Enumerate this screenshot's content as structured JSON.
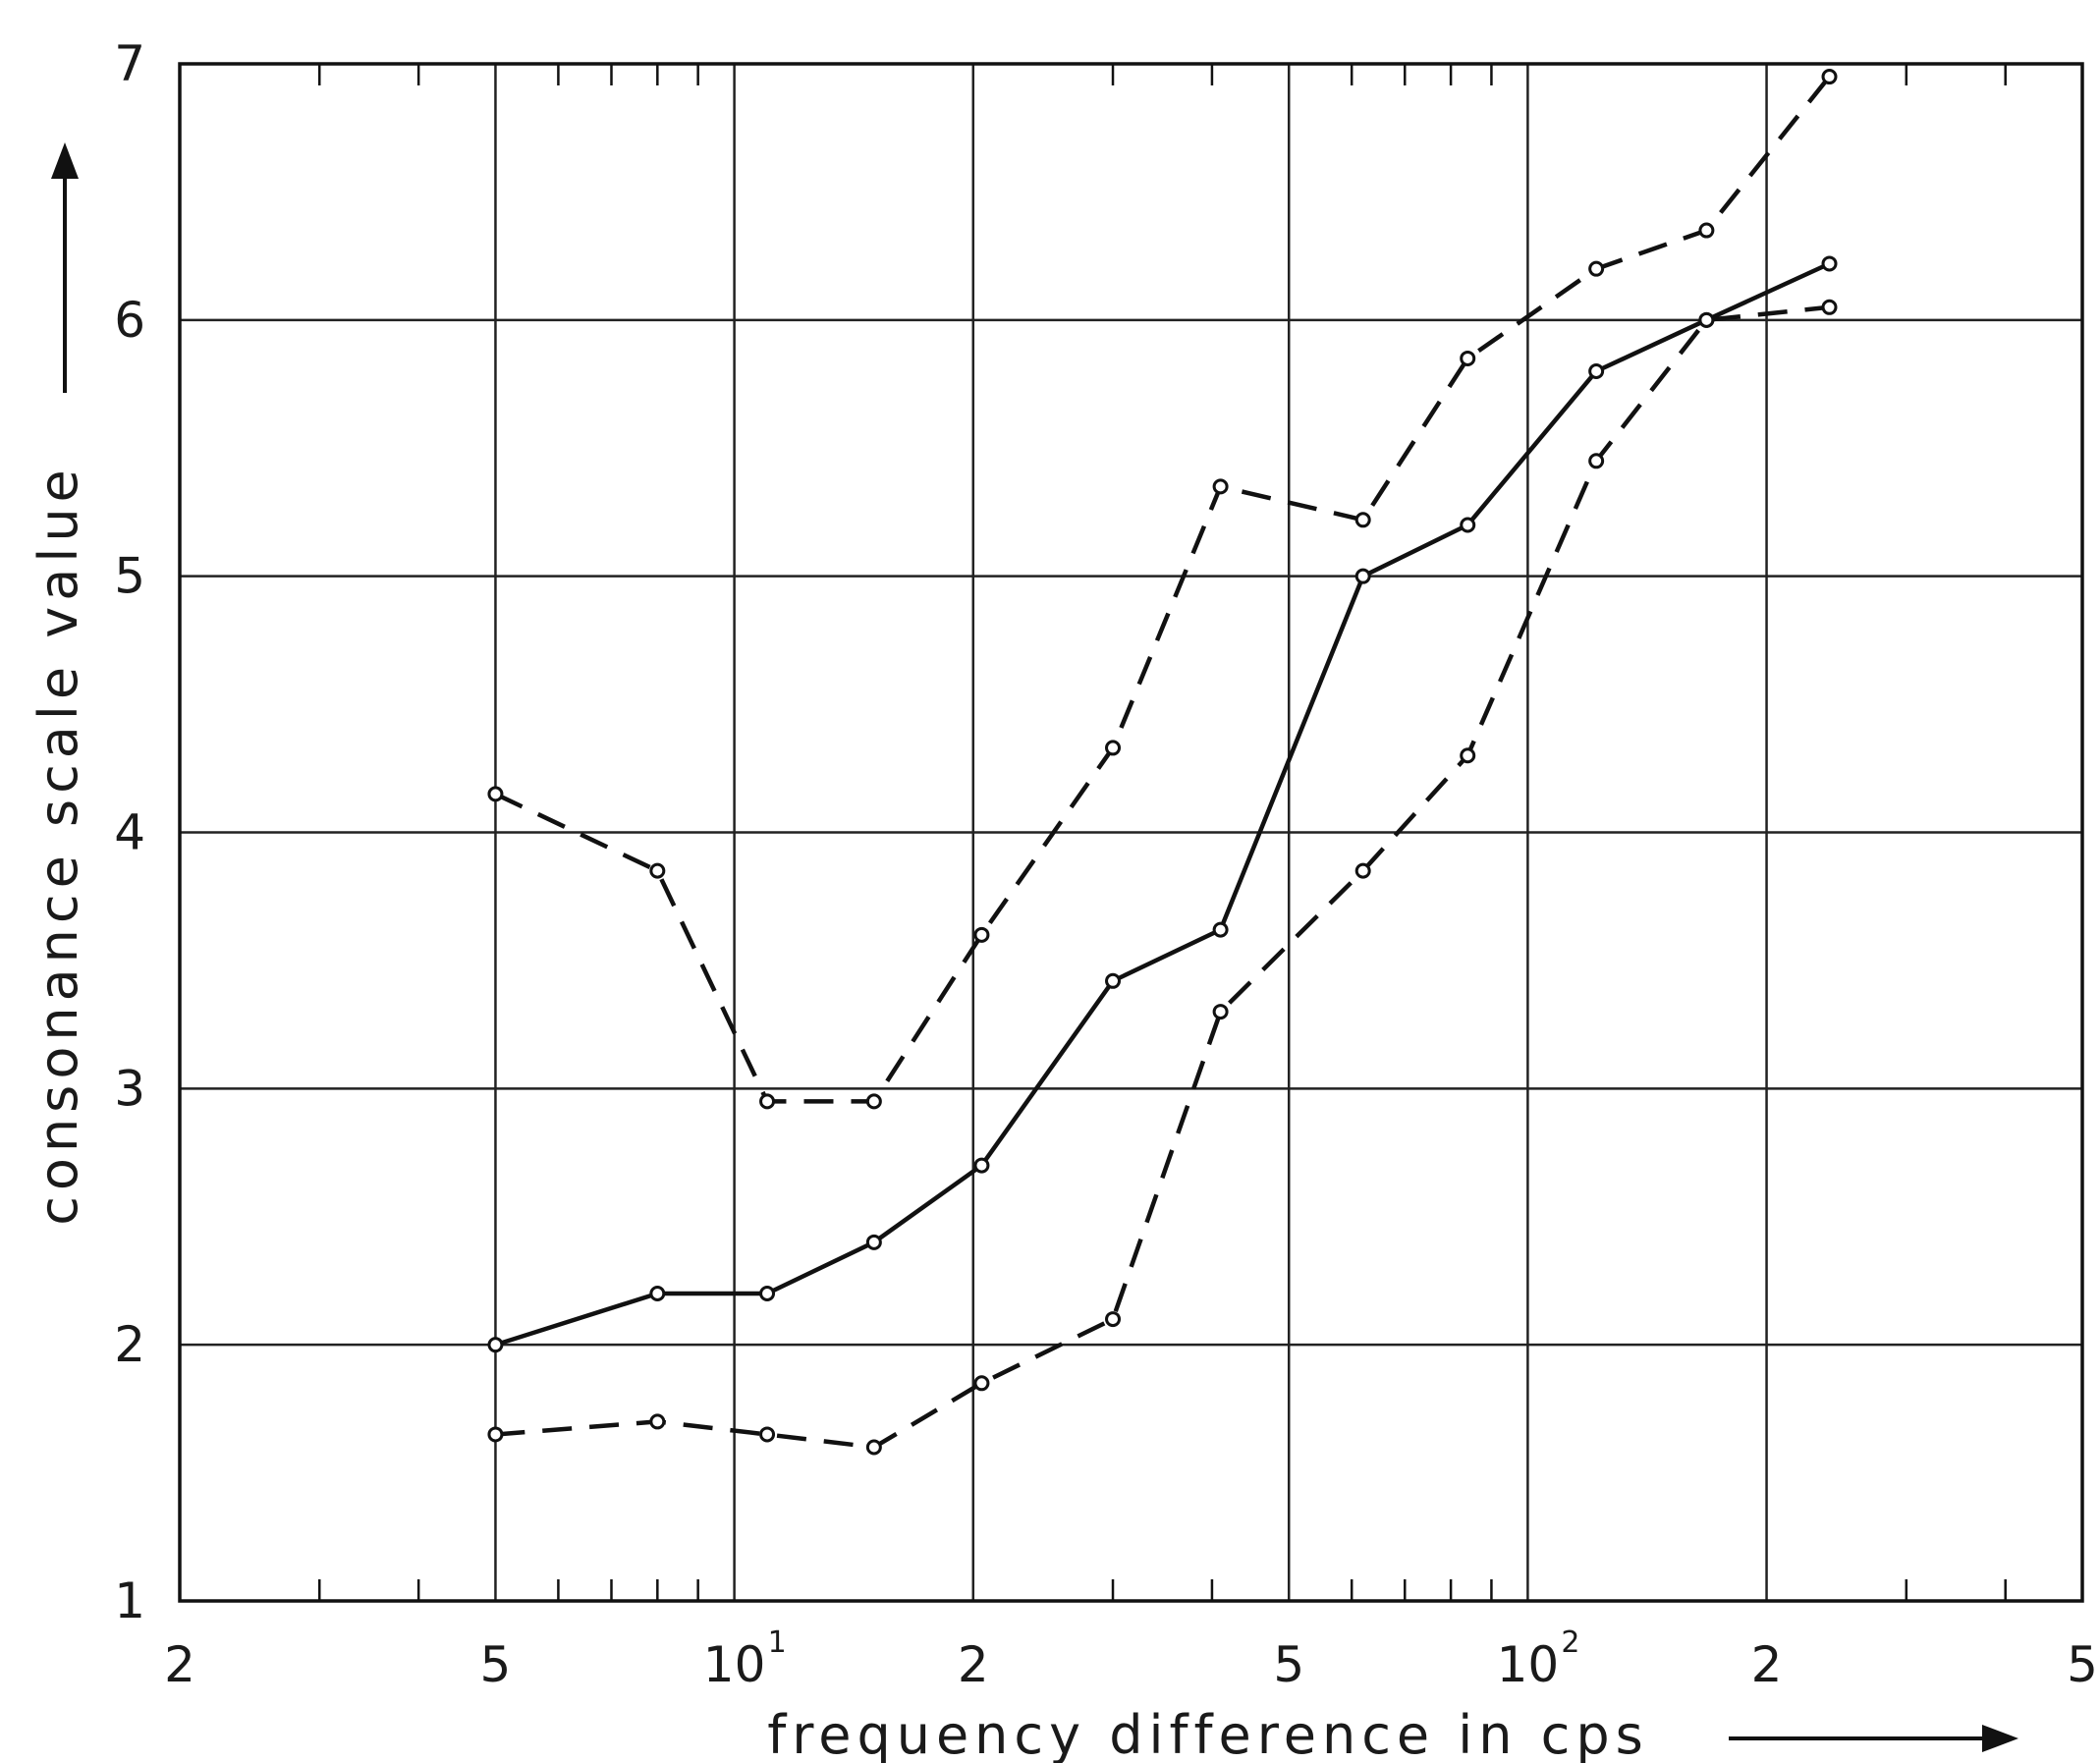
{
  "chart_data": {
    "type": "line",
    "title": "",
    "xlabel": "frequency difference in cps",
    "ylabel": "consonance scale value",
    "x_scale": "log",
    "xlim": [
      2,
      500
    ],
    "ylim": [
      1,
      7
    ],
    "grid": true,
    "x_ticks": [
      {
        "value": 2,
        "label": "2",
        "sup": ""
      },
      {
        "value": 5,
        "label": "5",
        "sup": ""
      },
      {
        "value": 10,
        "label": "10",
        "sup": "1"
      },
      {
        "value": 20,
        "label": "2",
        "sup": ""
      },
      {
        "value": 50,
        "label": "5",
        "sup": ""
      },
      {
        "value": 100,
        "label": "10",
        "sup": "2"
      },
      {
        "value": 200,
        "label": "2",
        "sup": ""
      },
      {
        "value": 500,
        "label": "5",
        "sup": ""
      }
    ],
    "y_ticks": [
      1,
      2,
      3,
      4,
      5,
      6,
      7
    ],
    "series": [
      {
        "style": "solid",
        "x": [
          5,
          8,
          11,
          15,
          20.5,
          30,
          41,
          62,
          84,
          122,
          168,
          240
        ],
        "y": [
          2.0,
          2.2,
          2.2,
          2.4,
          2.7,
          3.42,
          3.62,
          5.0,
          5.2,
          5.8,
          6.0,
          6.22
        ]
      },
      {
        "style": "dashed",
        "x": [
          5,
          8,
          11,
          15,
          20.5,
          30,
          41,
          62,
          84,
          122,
          168,
          240
        ],
        "y": [
          4.15,
          3.85,
          2.95,
          2.95,
          3.6,
          4.33,
          5.35,
          5.22,
          5.85,
          6.2,
          6.35,
          6.95
        ]
      },
      {
        "style": "dashed",
        "x": [
          5,
          8,
          11,
          15,
          20.5,
          30,
          41,
          62,
          84,
          122,
          168,
          240
        ],
        "y": [
          1.65,
          1.7,
          1.65,
          1.6,
          1.85,
          2.1,
          3.3,
          3.85,
          4.3,
          5.45,
          6.0,
          6.05
        ]
      }
    ]
  }
}
